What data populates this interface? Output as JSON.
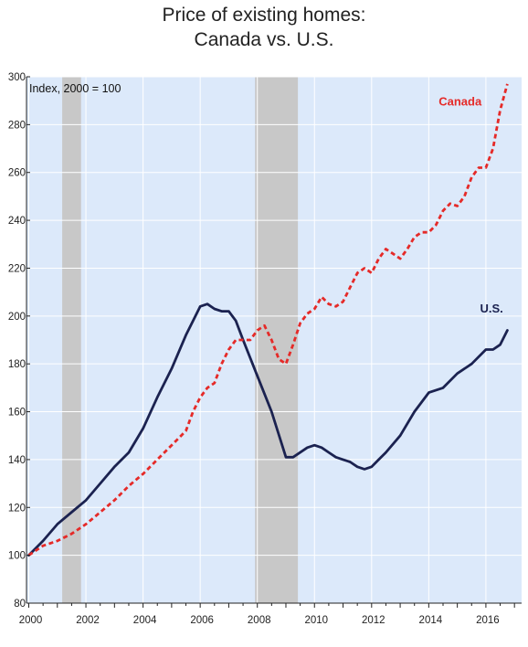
{
  "chart_data": {
    "type": "line",
    "title": [
      "Price of existing homes:",
      "Canada vs. U.S."
    ],
    "annotation": "Index, 2000 = 100",
    "xlim": [
      1999.92,
      2017.25
    ],
    "ylim": [
      80,
      300
    ],
    "x_ticks": [
      2000,
      2002,
      2004,
      2006,
      2008,
      2010,
      2012,
      2014,
      2016
    ],
    "y_ticks": [
      80,
      100,
      120,
      140,
      160,
      180,
      200,
      220,
      240,
      260,
      280,
      300
    ],
    "grid": true,
    "legend": "inline labels at line ends",
    "recession_shading": [
      [
        2001.17,
        2001.83
      ],
      [
        2007.92,
        2009.42
      ]
    ],
    "colors": {
      "plot_background": "#dce9fa",
      "recession": "#c8c8c8",
      "us": "#1b2250",
      "canada": "#e52a28"
    },
    "series": [
      {
        "name": "U.S.",
        "style": "solid",
        "x": [
          2000.0,
          2000.5,
          2001.0,
          2001.5,
          2002.0,
          2002.5,
          2003.0,
          2003.5,
          2004.0,
          2004.5,
          2005.0,
          2005.5,
          2005.75,
          2006.0,
          2006.25,
          2006.5,
          2006.75,
          2007.0,
          2007.25,
          2007.5,
          2008.0,
          2008.5,
          2009.0,
          2009.25,
          2009.5,
          2009.75,
          2010.0,
          2010.25,
          2010.5,
          2010.75,
          2011.0,
          2011.25,
          2011.5,
          2011.75,
          2012.0,
          2012.25,
          2012.5,
          2013.0,
          2013.5,
          2014.0,
          2014.5,
          2015.0,
          2015.5,
          2016.0,
          2016.25,
          2016.5,
          2016.75
        ],
        "values": [
          100,
          106,
          113,
          118,
          123,
          130,
          137,
          143,
          153,
          166,
          178,
          192,
          198,
          204,
          205,
          203,
          202,
          202,
          198,
          190,
          175,
          160,
          141,
          141,
          143,
          145,
          146,
          145,
          143,
          141,
          140,
          139,
          137,
          136,
          137,
          140,
          143,
          150,
          160,
          168,
          170,
          176,
          180,
          186,
          186,
          188,
          194
        ]
      },
      {
        "name": "Canada",
        "style": "dashed",
        "x": [
          2000.0,
          2000.5,
          2001.0,
          2001.5,
          2002.0,
          2002.5,
          2003.0,
          2003.5,
          2004.0,
          2004.5,
          2005.0,
          2005.5,
          2005.75,
          2006.0,
          2006.25,
          2006.5,
          2006.75,
          2007.0,
          2007.25,
          2007.5,
          2007.75,
          2008.0,
          2008.25,
          2008.5,
          2008.75,
          2009.0,
          2009.25,
          2009.5,
          2009.75,
          2010.0,
          2010.25,
          2010.5,
          2010.75,
          2011.0,
          2011.25,
          2011.5,
          2011.75,
          2012.0,
          2012.25,
          2012.5,
          2012.75,
          2013.0,
          2013.25,
          2013.5,
          2013.75,
          2014.0,
          2014.25,
          2014.5,
          2014.75,
          2015.0,
          2015.25,
          2015.5,
          2015.75,
          2016.0,
          2016.25,
          2016.5,
          2016.75
        ],
        "values": [
          100,
          104,
          106,
          109,
          113,
          118,
          123,
          129,
          134,
          140,
          146,
          152,
          160,
          166,
          170,
          172,
          180,
          186,
          190,
          190,
          190,
          194,
          196,
          190,
          182,
          180,
          188,
          197,
          201,
          203,
          208,
          205,
          204,
          206,
          212,
          218,
          220,
          218,
          224,
          228,
          226,
          224,
          228,
          233,
          235,
          235,
          238,
          244,
          247,
          246,
          250,
          258,
          262,
          262,
          270,
          286,
          297
        ]
      }
    ]
  }
}
